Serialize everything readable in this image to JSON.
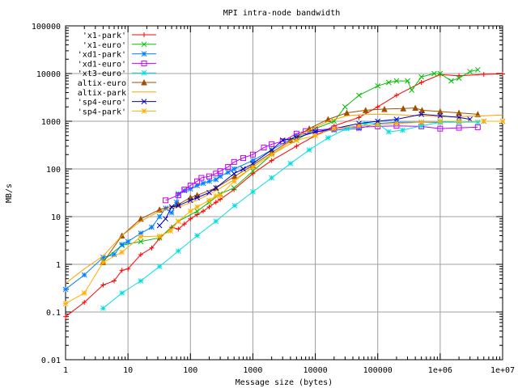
{
  "chart_data": {
    "type": "line",
    "title": "MPI intra-node bandwidth",
    "xlabel": "Message size (bytes)",
    "ylabel": "MB/s",
    "xscale": "log",
    "yscale": "log",
    "xlim": [
      1,
      10000000
    ],
    "ylim": [
      0.01,
      100000
    ],
    "grid": true,
    "legend_position": "top-left",
    "x_ticks": [
      {
        "value": 1,
        "label": "1"
      },
      {
        "value": 10,
        "label": "10"
      },
      {
        "value": 100,
        "label": "100"
      },
      {
        "value": 1000,
        "label": "1000"
      },
      {
        "value": 10000,
        "label": "10000"
      },
      {
        "value": 100000,
        "label": "100000"
      },
      {
        "value": 1000000,
        "label": "1e+06"
      },
      {
        "value": 10000000,
        "label": "1e+07"
      }
    ],
    "y_ticks": [
      {
        "value": 0.01,
        "label": "0.01"
      },
      {
        "value": 0.1,
        "label": "0.1"
      },
      {
        "value": 1,
        "label": "1"
      },
      {
        "value": 10,
        "label": "10"
      },
      {
        "value": 100,
        "label": "100"
      },
      {
        "value": 1000,
        "label": "1000"
      },
      {
        "value": 10000,
        "label": "10000"
      },
      {
        "value": 100000,
        "label": "100000"
      }
    ],
    "series": [
      {
        "name": "'x1-park'",
        "color": "#ff0000",
        "marker": "plus",
        "points": [
          [
            1,
            0.08
          ],
          [
            2,
            0.16
          ],
          [
            4,
            0.37
          ],
          [
            6,
            0.45
          ],
          [
            8,
            0.75
          ],
          [
            10,
            0.8
          ],
          [
            16,
            1.6
          ],
          [
            24,
            2.2
          ],
          [
            32,
            3.5
          ],
          [
            50,
            6
          ],
          [
            64,
            5.5
          ],
          [
            80,
            7
          ],
          [
            100,
            9
          ],
          [
            128,
            11
          ],
          [
            160,
            13
          ],
          [
            200,
            16
          ],
          [
            256,
            20
          ],
          [
            300,
            23
          ],
          [
            500,
            37
          ],
          [
            1000,
            80
          ],
          [
            2000,
            150
          ],
          [
            5000,
            300
          ],
          [
            10000,
            500
          ],
          [
            20000,
            800
          ],
          [
            50000,
            1200
          ],
          [
            100000,
            2000
          ],
          [
            200000,
            3500
          ],
          [
            500000,
            6500
          ],
          [
            1000000,
            9500
          ],
          [
            2000000,
            9000
          ],
          [
            5000000,
            9600
          ],
          [
            10000000,
            9800
          ]
        ]
      },
      {
        "name": "'x1-euro'",
        "color": "#00c000",
        "marker": "cross",
        "points": [
          [
            4,
            1.2
          ],
          [
            8,
            2.5
          ],
          [
            16,
            3
          ],
          [
            32,
            3.6
          ],
          [
            64,
            8
          ],
          [
            128,
            13
          ],
          [
            200,
            20
          ],
          [
            300,
            30
          ],
          [
            500,
            40
          ],
          [
            1000,
            90
          ],
          [
            2000,
            200
          ],
          [
            5000,
            400
          ],
          [
            10000,
            700
          ],
          [
            20000,
            1000
          ],
          [
            30000,
            2000
          ],
          [
            50000,
            3500
          ],
          [
            100000,
            5500
          ],
          [
            150000,
            6500
          ],
          [
            200000,
            7000
          ],
          [
            300000,
            7000
          ],
          [
            350000,
            4500
          ],
          [
            500000,
            8500
          ],
          [
            800000,
            10000
          ],
          [
            1000000,
            10000
          ],
          [
            1500000,
            7000
          ],
          [
            2000000,
            8000
          ],
          [
            3000000,
            11000
          ],
          [
            4000000,
            12000
          ]
        ]
      },
      {
        "name": "'xd1-park'",
        "color": "#0080ff",
        "marker": "star",
        "points": [
          [
            1,
            0.3
          ],
          [
            2,
            0.6
          ],
          [
            4,
            1.4
          ],
          [
            6,
            1.6
          ],
          [
            8,
            2.6
          ],
          [
            10,
            3
          ],
          [
            16,
            4.5
          ],
          [
            24,
            6
          ],
          [
            32,
            10
          ],
          [
            40,
            15
          ],
          [
            50,
            12
          ],
          [
            60,
            20
          ],
          [
            64,
            30
          ],
          [
            80,
            35
          ],
          [
            100,
            38
          ],
          [
            128,
            45
          ],
          [
            160,
            50
          ],
          [
            200,
            55
          ],
          [
            256,
            60
          ],
          [
            300,
            70
          ],
          [
            400,
            85
          ],
          [
            500,
            100
          ],
          [
            1000,
            150
          ],
          [
            2000,
            250
          ],
          [
            5000,
            500
          ],
          [
            10000,
            600
          ],
          [
            20000,
            650
          ],
          [
            50000,
            700
          ],
          [
            100000,
            900
          ],
          [
            200000,
            950
          ],
          [
            500000,
            950
          ],
          [
            1000000,
            950
          ],
          [
            2000000,
            1000
          ],
          [
            5000000,
            1000
          ],
          [
            10000000,
            1000
          ]
        ]
      },
      {
        "name": "'xd1-euro'",
        "color": "#c000ff",
        "marker": "square",
        "points": [
          [
            40,
            22
          ],
          [
            64,
            28
          ],
          [
            80,
            37
          ],
          [
            100,
            45
          ],
          [
            128,
            55
          ],
          [
            150,
            65
          ],
          [
            200,
            70
          ],
          [
            256,
            80
          ],
          [
            300,
            90
          ],
          [
            400,
            110
          ],
          [
            500,
            140
          ],
          [
            700,
            170
          ],
          [
            1000,
            200
          ],
          [
            1500,
            280
          ],
          [
            2000,
            330
          ],
          [
            3000,
            380
          ],
          [
            5000,
            550
          ],
          [
            7000,
            620
          ],
          [
            10000,
            650
          ],
          [
            20000,
            700
          ],
          [
            50000,
            750
          ],
          [
            100000,
            780
          ],
          [
            200000,
            800
          ],
          [
            500000,
            780
          ],
          [
            1000000,
            700
          ],
          [
            2000000,
            730
          ],
          [
            4000000,
            750
          ]
        ]
      },
      {
        "name": "'xt3-euro'",
        "color": "#00e0e0",
        "marker": "star",
        "points": [
          [
            4,
            0.12
          ],
          [
            8,
            0.25
          ],
          [
            16,
            0.45
          ],
          [
            32,
            0.9
          ],
          [
            64,
            1.9
          ],
          [
            128,
            4
          ],
          [
            256,
            8
          ],
          [
            512,
            17
          ],
          [
            1000,
            33
          ],
          [
            2000,
            65
          ],
          [
            4000,
            130
          ],
          [
            8000,
            250
          ],
          [
            16000,
            450
          ],
          [
            32000,
            700
          ],
          [
            64000,
            900
          ],
          [
            100000,
            900
          ],
          [
            150000,
            600
          ],
          [
            250000,
            650
          ],
          [
            500000,
            800
          ],
          [
            1000000,
            950
          ],
          [
            2000000,
            950
          ],
          [
            4000000,
            960
          ]
        ]
      },
      {
        "name": "altix-euro",
        "color": "#a05000",
        "marker": "triangle",
        "points": [
          [
            4,
            1.1
          ],
          [
            8,
            4
          ],
          [
            16,
            9
          ],
          [
            32,
            14
          ],
          [
            64,
            18
          ],
          [
            100,
            25
          ],
          [
            128,
            28
          ],
          [
            256,
            40
          ],
          [
            512,
            70
          ],
          [
            1000,
            120
          ],
          [
            2000,
            220
          ],
          [
            4000,
            400
          ],
          [
            8000,
            700
          ],
          [
            16000,
            1100
          ],
          [
            32000,
            1500
          ],
          [
            64000,
            1700
          ],
          [
            128000,
            1800
          ],
          [
            256000,
            1850
          ],
          [
            400000,
            1900
          ],
          [
            512000,
            1700
          ],
          [
            1000000,
            1600
          ],
          [
            2000000,
            1500
          ],
          [
            4000000,
            1400
          ]
        ]
      },
      {
        "name": "altix-park",
        "color": "#ffa000",
        "marker": "none",
        "points": [
          [
            1,
            0.4
          ],
          [
            2,
            0.8
          ],
          [
            4,
            1.5
          ],
          [
            8,
            4
          ],
          [
            16,
            8
          ],
          [
            32,
            13
          ],
          [
            64,
            16
          ],
          [
            128,
            22
          ],
          [
            256,
            35
          ],
          [
            512,
            60
          ],
          [
            1000,
            110
          ],
          [
            2000,
            200
          ],
          [
            4000,
            380
          ],
          [
            8000,
            650
          ],
          [
            16000,
            1000
          ],
          [
            32000,
            1300
          ],
          [
            64000,
            1400
          ],
          [
            128000,
            1400
          ],
          [
            256000,
            1350
          ],
          [
            512000,
            1300
          ],
          [
            1000000,
            1250
          ],
          [
            2000000,
            1250
          ],
          [
            5000000,
            1300
          ],
          [
            10000000,
            1350
          ]
        ]
      },
      {
        "name": "'sp4-euro'",
        "color": "#0000c0",
        "marker": "cross",
        "points": [
          [
            32,
            6.5
          ],
          [
            40,
            9
          ],
          [
            50,
            16
          ],
          [
            64,
            17
          ],
          [
            100,
            22
          ],
          [
            128,
            25
          ],
          [
            200,
            32
          ],
          [
            256,
            40
          ],
          [
            500,
            80
          ],
          [
            700,
            100
          ],
          [
            1000,
            130
          ],
          [
            2000,
            250
          ],
          [
            3000,
            400
          ],
          [
            5000,
            450
          ],
          [
            10000,
            600
          ],
          [
            20000,
            700
          ],
          [
            50000,
            900
          ],
          [
            100000,
            1000
          ],
          [
            200000,
            1100
          ],
          [
            500000,
            1400
          ],
          [
            1000000,
            1300
          ],
          [
            2000000,
            1200
          ],
          [
            3000000,
            1100
          ]
        ]
      },
      {
        "name": "'sp4-park'",
        "color": "#ffb000",
        "marker": "star",
        "points": [
          [
            1,
            0.15
          ],
          [
            2,
            0.25
          ],
          [
            4,
            1.1
          ],
          [
            8,
            1.8
          ],
          [
            16,
            3.8
          ],
          [
            32,
            3.9
          ],
          [
            48,
            5
          ],
          [
            64,
            8
          ],
          [
            100,
            13
          ],
          [
            128,
            16
          ],
          [
            200,
            22
          ],
          [
            256,
            27
          ],
          [
            300,
            28
          ],
          [
            500,
            55
          ],
          [
            1000,
            110
          ],
          [
            2000,
            200
          ],
          [
            5000,
            400
          ],
          [
            10000,
            500
          ],
          [
            20000,
            700
          ],
          [
            50000,
            800
          ],
          [
            100000,
            850
          ],
          [
            200000,
            900
          ],
          [
            500000,
            950
          ],
          [
            1000000,
            1000
          ],
          [
            2000000,
            1000
          ],
          [
            5000000,
            1000
          ],
          [
            10000000,
            1000
          ]
        ]
      }
    ]
  }
}
